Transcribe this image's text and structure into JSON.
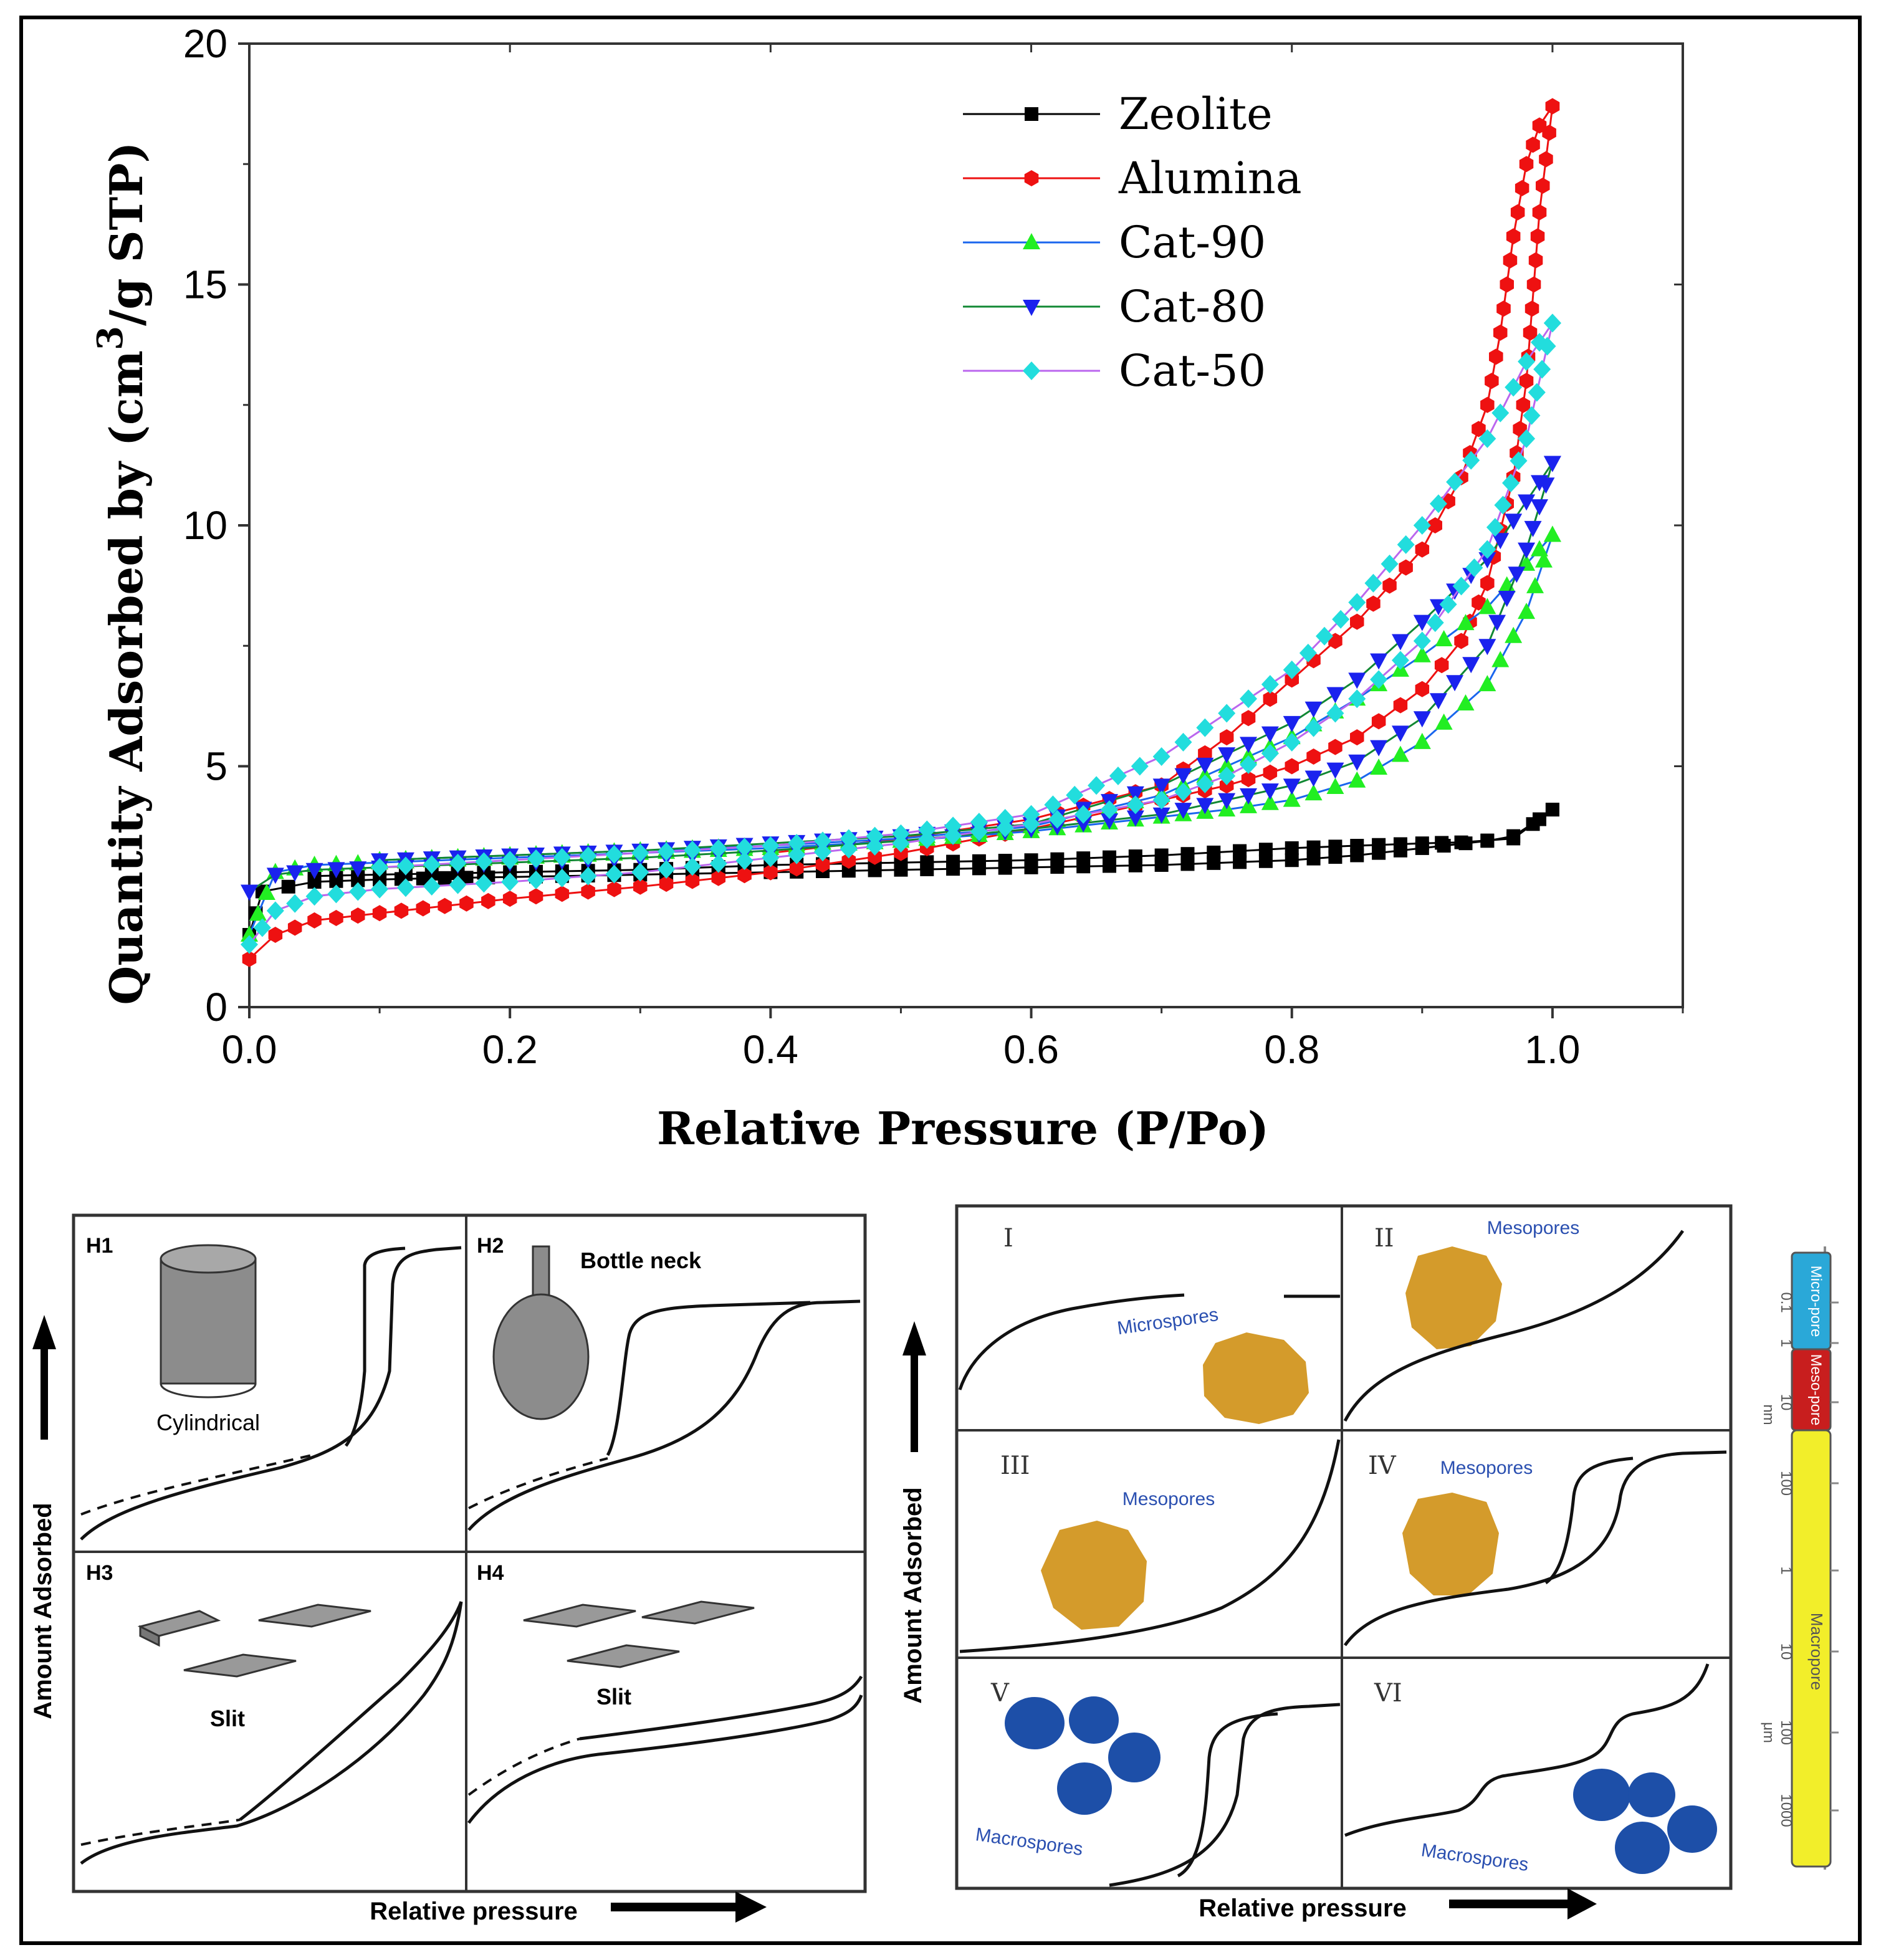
{
  "chart_data": {
    "type": "line",
    "title": "",
    "xlabel": "Relative Pressure (P/Po)",
    "ylabel_main": "Quantity Adsorbed by (cm",
    "ylabel_sup": "3",
    "ylabel_tail": "/g STP)",
    "xlim": [
      0,
      1.1
    ],
    "ylim": [
      0,
      20
    ],
    "xticks": [
      "0.0",
      "0.2",
      "0.4",
      "0.6",
      "0.8",
      "1.0"
    ],
    "yticks": [
      "0",
      "5",
      "10",
      "15",
      "20"
    ],
    "legend_position": "top-right",
    "series": [
      {
        "name": "Zeolite",
        "color": "#000000",
        "marker": "square",
        "adsorption": [
          [
            0.0,
            1.5
          ],
          [
            0.01,
            2.4
          ],
          [
            0.05,
            2.6
          ],
          [
            0.1,
            2.65
          ],
          [
            0.15,
            2.68
          ],
          [
            0.2,
            2.7
          ],
          [
            0.3,
            2.75
          ],
          [
            0.4,
            2.8
          ],
          [
            0.5,
            2.85
          ],
          [
            0.6,
            2.9
          ],
          [
            0.7,
            2.95
          ],
          [
            0.8,
            3.05
          ],
          [
            0.85,
            3.15
          ],
          [
            0.9,
            3.3
          ],
          [
            0.95,
            3.45
          ],
          [
            0.97,
            3.55
          ],
          [
            0.99,
            3.9
          ],
          [
            1.0,
            4.1
          ]
        ],
        "desorption": [
          [
            1.0,
            4.1
          ],
          [
            0.97,
            3.5
          ],
          [
            0.93,
            3.42
          ],
          [
            0.9,
            3.4
          ],
          [
            0.85,
            3.35
          ],
          [
            0.8,
            3.3
          ],
          [
            0.7,
            3.15
          ],
          [
            0.6,
            3.05
          ],
          [
            0.5,
            3.0
          ],
          [
            0.4,
            2.95
          ],
          [
            0.3,
            2.85
          ],
          [
            0.2,
            2.8
          ],
          [
            0.1,
            2.75
          ],
          [
            0.05,
            2.72
          ]
        ]
      },
      {
        "name": "Alumina",
        "color": "#ee1111",
        "marker": "hexagon",
        "adsorption": [
          [
            0.0,
            1.0
          ],
          [
            0.02,
            1.5
          ],
          [
            0.05,
            1.8
          ],
          [
            0.1,
            1.95
          ],
          [
            0.15,
            2.1
          ],
          [
            0.2,
            2.25
          ],
          [
            0.3,
            2.5
          ],
          [
            0.4,
            2.8
          ],
          [
            0.5,
            3.2
          ],
          [
            0.6,
            3.7
          ],
          [
            0.7,
            4.3
          ],
          [
            0.75,
            4.6
          ],
          [
            0.8,
            5.0
          ],
          [
            0.85,
            5.6
          ],
          [
            0.9,
            6.6
          ],
          [
            0.93,
            7.6
          ],
          [
            0.95,
            8.8
          ],
          [
            0.97,
            11.0
          ],
          [
            0.98,
            13.0
          ],
          [
            0.99,
            16.5
          ],
          [
            1.0,
            18.7
          ]
        ],
        "desorption": [
          [
            1.0,
            18.7
          ],
          [
            0.99,
            18.3
          ],
          [
            0.98,
            17.5
          ],
          [
            0.97,
            16.0
          ],
          [
            0.96,
            14.0
          ],
          [
            0.95,
            12.5
          ],
          [
            0.93,
            11.0
          ],
          [
            0.9,
            9.5
          ],
          [
            0.85,
            8.0
          ],
          [
            0.8,
            6.8
          ],
          [
            0.75,
            5.6
          ],
          [
            0.7,
            4.6
          ],
          [
            0.6,
            3.9
          ],
          [
            0.5,
            3.5
          ],
          [
            0.4,
            3.2
          ]
        ]
      },
      {
        "name": "Cat-90",
        "color": "#1a66ee",
        "marker": "triangle-up",
        "marker_color": "#22ee22",
        "adsorption": [
          [
            0.0,
            1.5
          ],
          [
            0.02,
            2.8
          ],
          [
            0.05,
            2.95
          ],
          [
            0.1,
            3.0
          ],
          [
            0.2,
            3.1
          ],
          [
            0.3,
            3.2
          ],
          [
            0.4,
            3.3
          ],
          [
            0.5,
            3.45
          ],
          [
            0.6,
            3.65
          ],
          [
            0.7,
            3.95
          ],
          [
            0.75,
            4.1
          ],
          [
            0.8,
            4.3
          ],
          [
            0.85,
            4.7
          ],
          [
            0.9,
            5.5
          ],
          [
            0.95,
            6.7
          ],
          [
            0.98,
            8.2
          ],
          [
            1.0,
            9.8
          ]
        ],
        "desorption": [
          [
            1.0,
            9.8
          ],
          [
            0.98,
            9.2
          ],
          [
            0.95,
            8.3
          ],
          [
            0.9,
            7.3
          ],
          [
            0.85,
            6.4
          ],
          [
            0.8,
            5.6
          ],
          [
            0.7,
            4.4
          ],
          [
            0.6,
            3.75
          ],
          [
            0.5,
            3.5
          ],
          [
            0.4,
            3.35
          ],
          [
            0.3,
            3.25
          ],
          [
            0.2,
            3.15
          ],
          [
            0.1,
            3.05
          ]
        ]
      },
      {
        "name": "Cat-80",
        "color": "#118833",
        "marker": "triangle-down",
        "marker_color": "#1a22ee",
        "adsorption": [
          [
            0.0,
            2.4
          ],
          [
            0.02,
            2.75
          ],
          [
            0.05,
            2.85
          ],
          [
            0.1,
            2.9
          ],
          [
            0.2,
            3.0
          ],
          [
            0.3,
            3.1
          ],
          [
            0.4,
            3.25
          ],
          [
            0.5,
            3.45
          ],
          [
            0.6,
            3.7
          ],
          [
            0.7,
            4.0
          ],
          [
            0.75,
            4.3
          ],
          [
            0.8,
            4.6
          ],
          [
            0.85,
            5.1
          ],
          [
            0.9,
            6.0
          ],
          [
            0.95,
            7.5
          ],
          [
            0.98,
            9.5
          ],
          [
            1.0,
            11.3
          ]
        ],
        "desorption": [
          [
            1.0,
            11.3
          ],
          [
            0.98,
            10.5
          ],
          [
            0.95,
            9.3
          ],
          [
            0.9,
            8.0
          ],
          [
            0.85,
            6.8
          ],
          [
            0.8,
            5.9
          ],
          [
            0.7,
            4.6
          ],
          [
            0.6,
            3.8
          ],
          [
            0.5,
            3.55
          ],
          [
            0.4,
            3.4
          ],
          [
            0.3,
            3.25
          ],
          [
            0.2,
            3.15
          ],
          [
            0.1,
            3.05
          ]
        ]
      },
      {
        "name": "Cat-50",
        "color": "#bb66ee",
        "marker": "diamond",
        "marker_color": "#22dddd",
        "adsorption": [
          [
            0.0,
            1.3
          ],
          [
            0.02,
            2.0
          ],
          [
            0.05,
            2.3
          ],
          [
            0.1,
            2.45
          ],
          [
            0.2,
            2.6
          ],
          [
            0.3,
            2.8
          ],
          [
            0.4,
            3.1
          ],
          [
            0.5,
            3.4
          ],
          [
            0.6,
            3.8
          ],
          [
            0.7,
            4.3
          ],
          [
            0.75,
            4.8
          ],
          [
            0.8,
            5.5
          ],
          [
            0.85,
            6.4
          ],
          [
            0.9,
            7.6
          ],
          [
            0.95,
            9.5
          ],
          [
            0.98,
            11.8
          ],
          [
            1.0,
            14.2
          ]
        ],
        "desorption": [
          [
            1.0,
            14.2
          ],
          [
            0.98,
            13.4
          ],
          [
            0.95,
            11.8
          ],
          [
            0.9,
            10.0
          ],
          [
            0.85,
            8.4
          ],
          [
            0.8,
            7.0
          ],
          [
            0.7,
            5.2
          ],
          [
            0.6,
            4.0
          ],
          [
            0.5,
            3.6
          ],
          [
            0.4,
            3.35
          ],
          [
            0.3,
            3.2
          ],
          [
            0.2,
            3.05
          ],
          [
            0.1,
            2.9
          ]
        ]
      }
    ]
  },
  "hysteresis_panel": {
    "y_axis_label": "Amount Adsorbed",
    "x_axis_label": "Relative pressure",
    "cells": [
      {
        "id": "H1",
        "shape_label": "Cylindrical"
      },
      {
        "id": "H2",
        "shape_label": "Bottle neck"
      },
      {
        "id": "H3",
        "shape_label": "Slit"
      },
      {
        "id": "H4",
        "shape_label": "Slit"
      }
    ]
  },
  "isotherm_panel": {
    "y_axis_label": "Amount Adsorbed",
    "x_axis_label": "Relative pressure",
    "cells": [
      {
        "id": "I",
        "pore_label": "Microspores"
      },
      {
        "id": "II",
        "pore_label": "Mesopores"
      },
      {
        "id": "III",
        "pore_label": "Mesopores"
      },
      {
        "id": "IV",
        "pore_label": "Mesopores"
      },
      {
        "id": "V",
        "pore_label": "Macrospores"
      },
      {
        "id": "VI",
        "pore_label": "Macrospores"
      }
    ]
  },
  "pore_scale": {
    "ticks": [
      "0.1",
      "1",
      "10",
      "100",
      "1",
      "10",
      "100",
      "1000"
    ],
    "unit_nm": "nm",
    "unit_um": "μm",
    "bands": [
      {
        "label": "Micro-pore",
        "color": "#2aa8d8"
      },
      {
        "label": "Meso-pore",
        "color": "#c81e1e"
      },
      {
        "label": "Macropore",
        "color": "#f2ee2a"
      }
    ]
  }
}
